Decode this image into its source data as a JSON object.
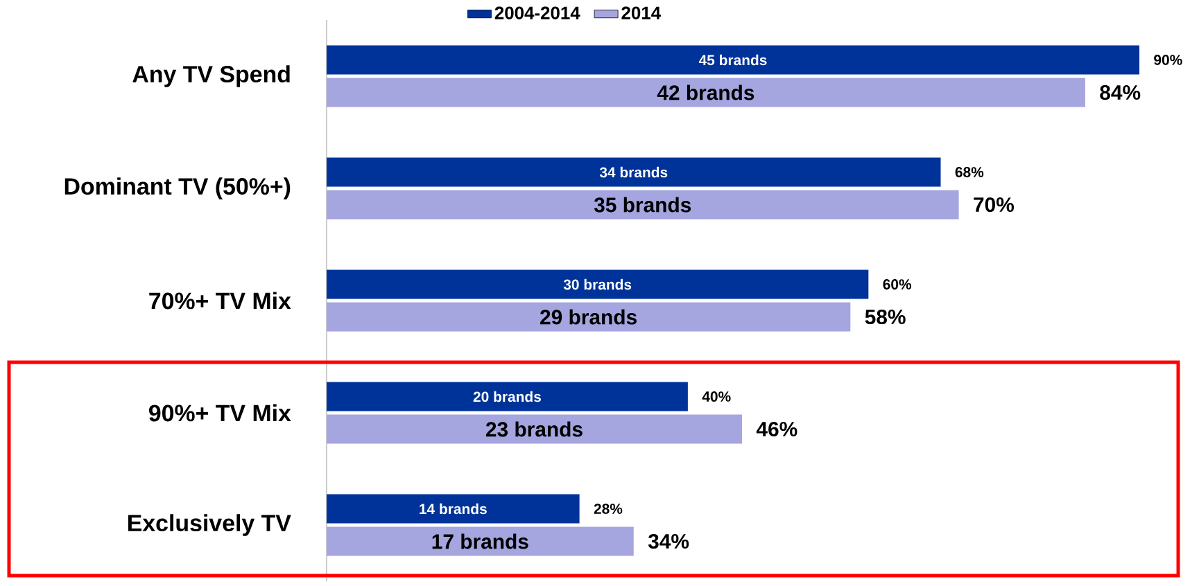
{
  "chart_data": {
    "type": "bar",
    "orientation": "horizontal",
    "categories": [
      "Any TV Spend",
      "Dominant TV (50%+)",
      "70%+ TV Mix",
      "90%+ TV Mix",
      "Exclusively TV"
    ],
    "series": [
      {
        "name": "2004-2014",
        "color": "#003399",
        "values": [
          90,
          68,
          60,
          40,
          28
        ],
        "value_labels": [
          "90%",
          "68%",
          "60%",
          "40%",
          "28%"
        ]
      },
      {
        "name": "2014",
        "color": "#a5a5e0",
        "values": [
          84,
          70,
          58,
          46,
          34
        ],
        "value_labels": [
          "84%",
          "70%",
          "58%",
          "46%",
          "34%"
        ]
      }
    ],
    "annotations": [
      "45 brands",
      "42 brands",
      "34 brands",
      "35 brands",
      "30 brands",
      "29 brands",
      "20 brands",
      "23 brands",
      "14 brands",
      "17 brands"
    ],
    "legend": "top"
  }
}
